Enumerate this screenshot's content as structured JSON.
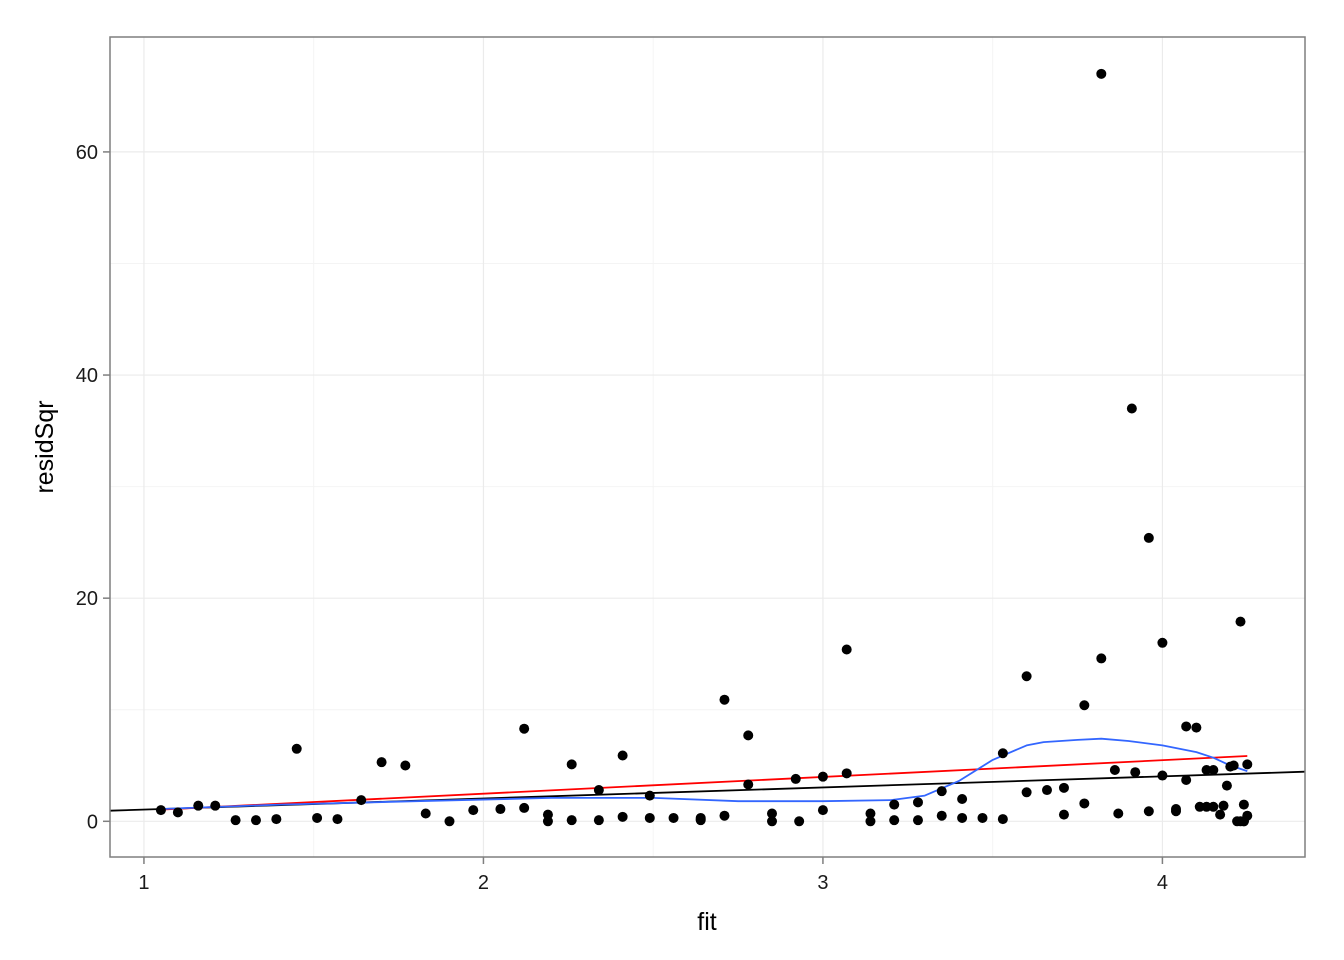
{
  "chart_data": {
    "type": "scatter",
    "xlabel": "fit",
    "ylabel": "residSqr",
    "xlim": [
      0.9,
      4.42
    ],
    "ylim": [
      -3.2,
      70.3
    ],
    "x_ticks": [
      1,
      2,
      3,
      4
    ],
    "y_ticks": [
      0,
      20,
      40,
      60
    ],
    "x_minor": [
      1.5,
      2.5,
      3.5
    ],
    "y_minor": [
      10,
      30,
      50
    ],
    "grid": true,
    "colors": {
      "points": "#000000",
      "reference_line": "#000000",
      "linear_fit": "#ff0000",
      "smooth_fit": "#3366ff",
      "grid": "#ebebeb",
      "panel_border": "#7f7f7f"
    },
    "series": [
      {
        "kind": "points",
        "x": [
          1.05,
          1.1,
          1.16,
          1.21,
          1.27,
          1.33,
          1.39,
          1.45,
          1.51,
          1.57,
          1.64,
          1.7,
          1.77,
          1.83,
          1.9,
          1.97,
          2.05,
          2.12,
          2.12,
          2.19,
          2.19,
          2.26,
          2.26,
          2.34,
          2.34,
          2.41,
          2.41,
          2.49,
          2.49,
          2.56,
          2.64,
          2.64,
          2.64,
          2.71,
          2.71,
          2.78,
          2.78,
          2.85,
          2.85,
          2.92,
          2.93,
          3.0,
          3.0,
          3.07,
          3.07,
          3.14,
          3.14,
          3.21,
          3.21,
          3.28,
          3.28,
          3.35,
          3.35,
          3.41,
          3.41,
          3.47,
          3.53,
          3.53,
          3.6,
          3.6,
          3.66,
          3.71,
          3.71,
          3.77,
          3.77,
          3.82,
          3.82,
          3.86,
          3.87,
          3.91,
          3.92,
          3.96,
          3.96,
          4.0,
          4.0,
          4.04,
          4.04,
          4.07,
          4.07,
          4.1,
          4.11,
          4.13,
          4.13,
          4.15,
          4.15,
          4.17,
          4.18,
          4.19,
          4.2,
          4.21,
          4.22,
          4.23,
          4.23,
          4.24,
          4.24,
          4.24,
          4.25,
          4.25
        ],
        "y": [
          1.0,
          0.8,
          1.4,
          1.4,
          0.1,
          0.1,
          0.2,
          6.5,
          0.3,
          0.2,
          1.9,
          5.3,
          5.0,
          0.7,
          0.0,
          1.0,
          1.1,
          1.2,
          8.3,
          0.6,
          0.0,
          5.1,
          0.1,
          2.8,
          0.1,
          5.9,
          0.4,
          2.3,
          0.3,
          0.3,
          0.3,
          0.1,
          0.2,
          10.9,
          0.5,
          3.3,
          7.7,
          0.7,
          0.0,
          3.8,
          0.0,
          4.0,
          1.0,
          4.3,
          15.4,
          0.0,
          0.7,
          0.1,
          1.5,
          1.7,
          0.1,
          2.7,
          0.5,
          2.0,
          0.3,
          0.3,
          6.1,
          0.2,
          2.6,
          13.0,
          2.8,
          3.0,
          0.6,
          1.6,
          10.4,
          14.6,
          67.0,
          4.6,
          0.7,
          37.0,
          4.4,
          25.4,
          0.9,
          4.1,
          16.0,
          0.9,
          1.1,
          3.7,
          8.5,
          8.4,
          1.3,
          1.3,
          4.6,
          1.3,
          4.6,
          0.6,
          1.4,
          3.2,
          4.9,
          5.0,
          0.0,
          0.0,
          17.9,
          1.5,
          0.0,
          0.0,
          0.5,
          5.1
        ]
      },
      {
        "kind": "line",
        "role": "reference",
        "x": [
          0.9,
          4.42
        ],
        "y": [
          0.95,
          4.45
        ]
      },
      {
        "kind": "line",
        "role": "linear-fit",
        "x": [
          1.05,
          4.25
        ],
        "y": [
          1.05,
          5.85
        ]
      },
      {
        "kind": "line",
        "role": "smooth",
        "x": [
          1.05,
          1.4,
          1.8,
          2.2,
          2.5,
          2.75,
          3.0,
          3.2,
          3.3,
          3.4,
          3.5,
          3.6,
          3.65,
          3.75,
          3.82,
          3.9,
          4.0,
          4.1,
          4.15,
          4.2,
          4.25
        ],
        "y": [
          1.1,
          1.5,
          1.8,
          2.1,
          2.1,
          1.8,
          1.8,
          1.9,
          2.3,
          3.6,
          5.5,
          6.8,
          7.1,
          7.3,
          7.4,
          7.2,
          6.8,
          6.2,
          5.7,
          5.0,
          4.5
        ]
      }
    ]
  }
}
